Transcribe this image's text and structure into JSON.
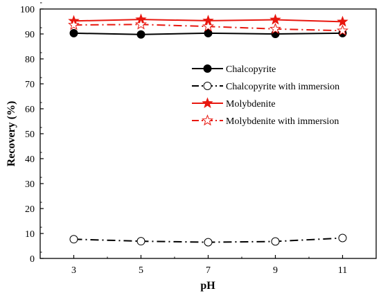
{
  "chart_data": {
    "type": "line",
    "title": "",
    "xlabel": "pH",
    "ylabel": "Recovery (%)",
    "x": [
      3,
      5,
      7,
      9,
      11
    ],
    "x_ticks": [
      "3",
      "5",
      "7",
      "9",
      "11"
    ],
    "y_ticks": [
      "0",
      "10",
      "20",
      "30",
      "40",
      "50",
      "60",
      "70",
      "80",
      "90",
      "100"
    ],
    "xlim": [
      2,
      12
    ],
    "ylim": [
      0,
      100
    ],
    "grid": false,
    "legend_position": "upper-right",
    "series": [
      {
        "name": "Chalcopyrite",
        "values": [
          90.3,
          89.8,
          90.3,
          90.0,
          90.3
        ],
        "color": "#000000",
        "marker": "filled-circle",
        "line": "solid"
      },
      {
        "name": "Chalcopyrite with immersion",
        "values": [
          7.7,
          6.9,
          6.5,
          6.8,
          8.2
        ],
        "color": "#000000",
        "marker": "open-circle",
        "line": "dash-dot"
      },
      {
        "name": "Molybdenite",
        "values": [
          95.2,
          95.8,
          95.3,
          95.7,
          94.9
        ],
        "color": "#e8170f",
        "marker": "filled-star",
        "line": "solid"
      },
      {
        "name": "Molybdenite with immersion",
        "values": [
          93.6,
          93.8,
          93.0,
          92.0,
          91.3
        ],
        "color": "#e8170f",
        "marker": "open-star",
        "line": "dash-dot"
      }
    ]
  }
}
